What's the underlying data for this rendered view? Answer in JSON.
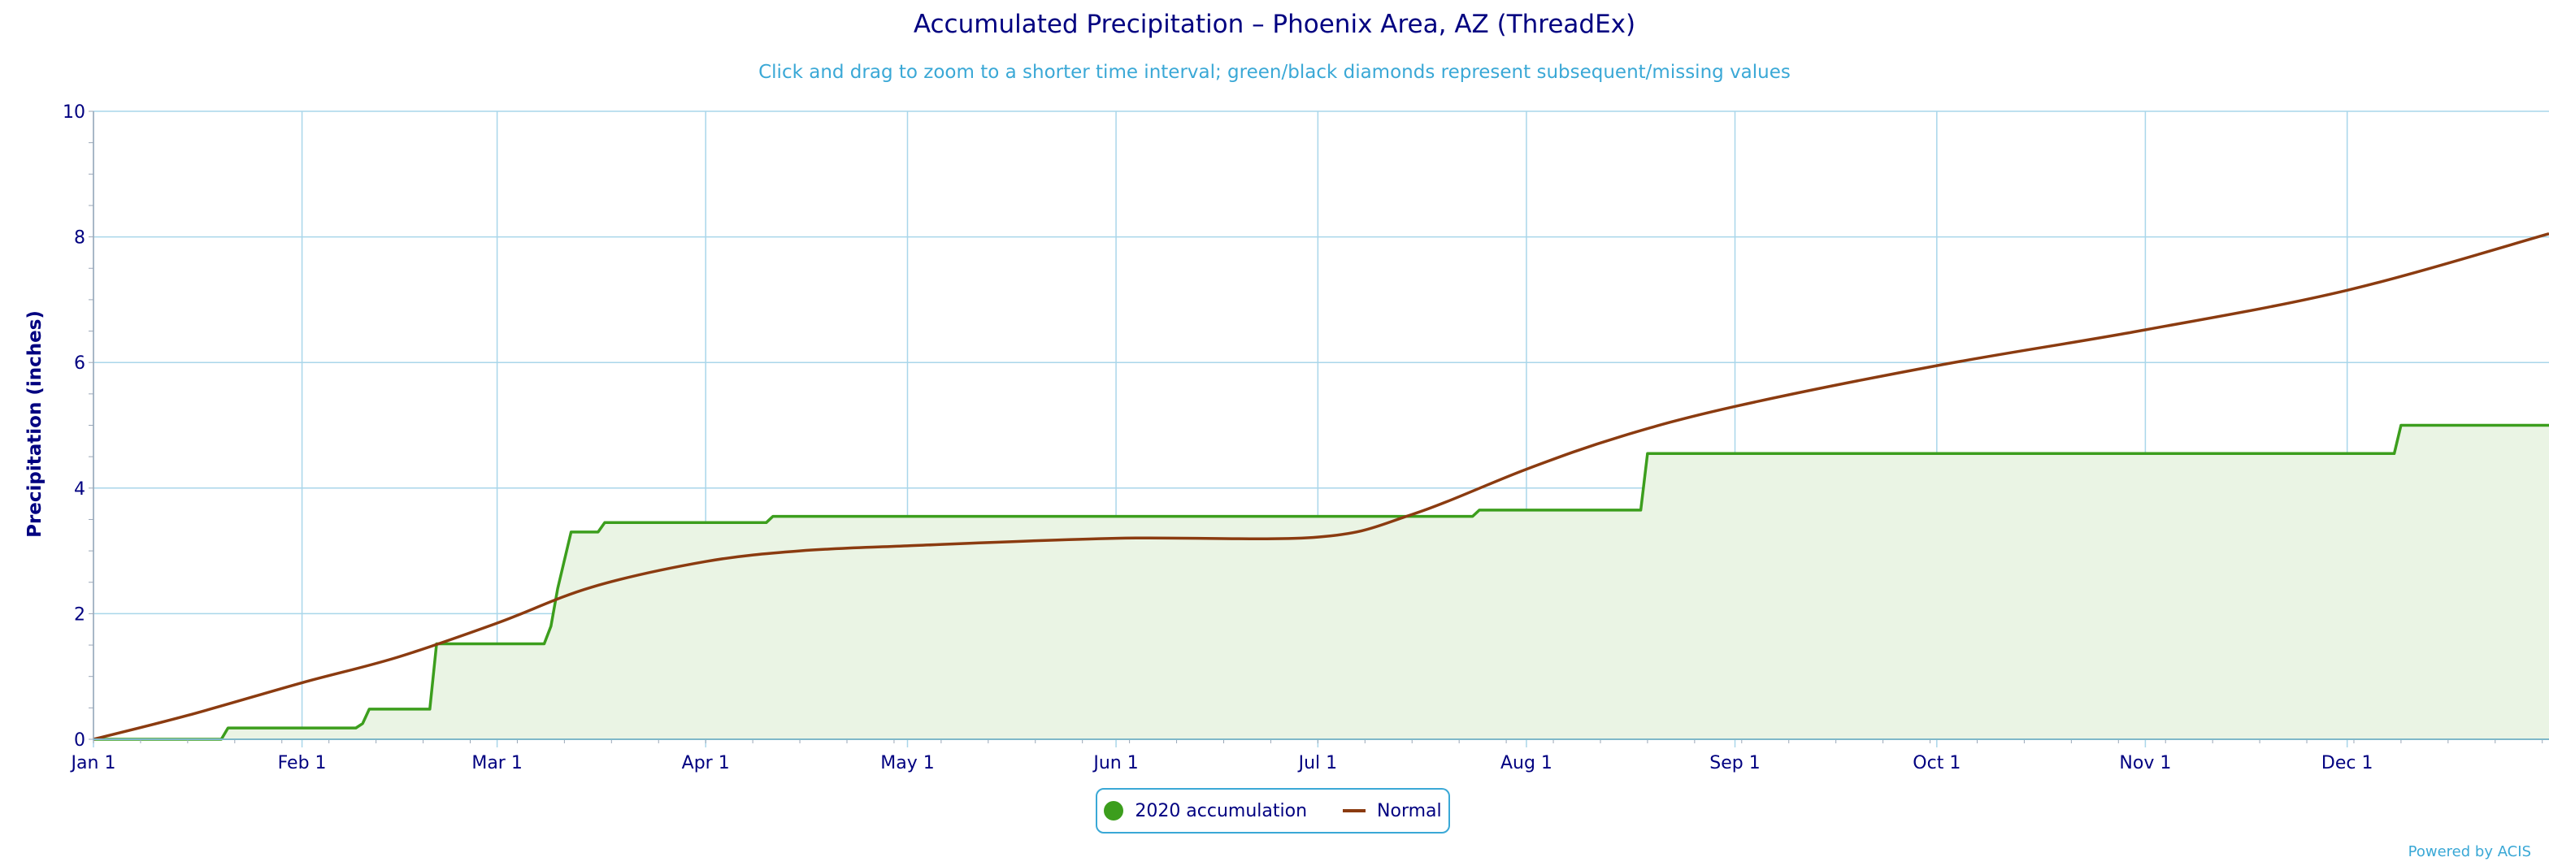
{
  "title": "Accumulated Precipitation – Phoenix Area, AZ (ThreadEx)",
  "subtitle": "Click and drag to zoom to a shorter time interval; green/black diamonds represent subsequent/missing values",
  "credit": "Powered by ACIS",
  "colors": {
    "accumulation": "#3c9e1d",
    "accumulation_fill": "#eaf4e4",
    "normal": "#8b3b10",
    "grid": "#a9d6ea",
    "axis_text": "#000080",
    "accent": "#3aa8d6"
  },
  "chart_data": {
    "type": "line",
    "title": "Accumulated Precipitation – Phoenix Area, AZ (ThreadEx)",
    "xlabel": "",
    "ylabel": "Precipitation (inches)",
    "ylim": [
      0,
      10
    ],
    "yticks": [
      "0",
      "2",
      "4",
      "6",
      "8",
      "10"
    ],
    "xlim": [
      "2020-01-01",
      "2020-12-31"
    ],
    "xticks": [
      {
        "label": "Jan 1",
        "date": "2020-01-01"
      },
      {
        "label": "Feb 1",
        "date": "2020-02-01"
      },
      {
        "label": "Mar 1",
        "date": "2020-03-01"
      },
      {
        "label": "Apr 1",
        "date": "2020-04-01"
      },
      {
        "label": "May 1",
        "date": "2020-05-01"
      },
      {
        "label": "Jun 1",
        "date": "2020-06-01"
      },
      {
        "label": "Jul 1",
        "date": "2020-07-01"
      },
      {
        "label": "Aug 1",
        "date": "2020-08-01"
      },
      {
        "label": "Sep 1",
        "date": "2020-09-01"
      },
      {
        "label": "Oct 1",
        "date": "2020-10-01"
      },
      {
        "label": "Nov 1",
        "date": "2020-11-01"
      },
      {
        "label": "Dec 1",
        "date": "2020-12-01"
      }
    ],
    "grid": true,
    "legend_position": "bottom-center",
    "series": [
      {
        "name": "2020 accumulation",
        "style": "area-step",
        "points": [
          {
            "x": "2020-01-01",
            "y": 0.0
          },
          {
            "x": "2020-01-20",
            "y": 0.0
          },
          {
            "x": "2020-01-21",
            "y": 0.18
          },
          {
            "x": "2020-02-09",
            "y": 0.18
          },
          {
            "x": "2020-02-10",
            "y": 0.25
          },
          {
            "x": "2020-02-11",
            "y": 0.48
          },
          {
            "x": "2020-02-20",
            "y": 0.48
          },
          {
            "x": "2020-02-21",
            "y": 1.52
          },
          {
            "x": "2020-03-08",
            "y": 1.52
          },
          {
            "x": "2020-03-09",
            "y": 1.8
          },
          {
            "x": "2020-03-10",
            "y": 2.4
          },
          {
            "x": "2020-03-12",
            "y": 3.3
          },
          {
            "x": "2020-03-16",
            "y": 3.3
          },
          {
            "x": "2020-03-17",
            "y": 3.45
          },
          {
            "x": "2020-04-10",
            "y": 3.45
          },
          {
            "x": "2020-04-11",
            "y": 3.55
          },
          {
            "x": "2020-07-24",
            "y": 3.55
          },
          {
            "x": "2020-07-25",
            "y": 3.65
          },
          {
            "x": "2020-08-18",
            "y": 3.65
          },
          {
            "x": "2020-08-19",
            "y": 4.55
          },
          {
            "x": "2020-12-08",
            "y": 4.55
          },
          {
            "x": "2020-12-09",
            "y": 5.0
          },
          {
            "x": "2020-12-31",
            "y": 5.0
          }
        ]
      },
      {
        "name": "Normal",
        "style": "line",
        "points": [
          {
            "x": "2020-01-01",
            "y": 0.0
          },
          {
            "x": "2020-01-15",
            "y": 0.38
          },
          {
            "x": "2020-02-01",
            "y": 0.9
          },
          {
            "x": "2020-02-15",
            "y": 1.3
          },
          {
            "x": "2020-03-01",
            "y": 1.85
          },
          {
            "x": "2020-03-15",
            "y": 2.42
          },
          {
            "x": "2020-04-01",
            "y": 2.83
          },
          {
            "x": "2020-04-15",
            "y": 3.0
          },
          {
            "x": "2020-05-01",
            "y": 3.08
          },
          {
            "x": "2020-06-01",
            "y": 3.2
          },
          {
            "x": "2020-07-01",
            "y": 3.22
          },
          {
            "x": "2020-07-15",
            "y": 3.58
          },
          {
            "x": "2020-08-01",
            "y": 4.3
          },
          {
            "x": "2020-08-15",
            "y": 4.82
          },
          {
            "x": "2020-09-01",
            "y": 5.3
          },
          {
            "x": "2020-10-01",
            "y": 5.95
          },
          {
            "x": "2020-11-01",
            "y": 6.52
          },
          {
            "x": "2020-12-01",
            "y": 7.15
          },
          {
            "x": "2020-12-31",
            "y": 8.05
          }
        ]
      }
    ],
    "legend": [
      {
        "label": "2020 accumulation",
        "marker": "circle"
      },
      {
        "label": "Normal",
        "marker": "line"
      }
    ]
  }
}
